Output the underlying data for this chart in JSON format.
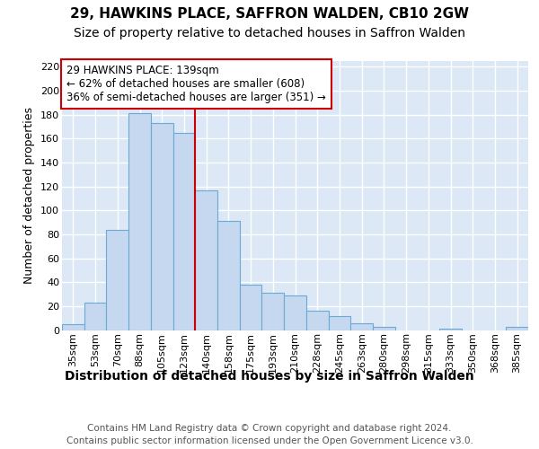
{
  "title": "29, HAWKINS PLACE, SAFFRON WALDEN, CB10 2GW",
  "subtitle": "Size of property relative to detached houses in Saffron Walden",
  "xlabel": "Distribution of detached houses by size in Saffron Walden",
  "ylabel": "Number of detached properties",
  "categories": [
    "35sqm",
    "53sqm",
    "70sqm",
    "88sqm",
    "105sqm",
    "123sqm",
    "140sqm",
    "158sqm",
    "175sqm",
    "193sqm",
    "210sqm",
    "228sqm",
    "245sqm",
    "263sqm",
    "280sqm",
    "298sqm",
    "315sqm",
    "333sqm",
    "350sqm",
    "368sqm",
    "385sqm"
  ],
  "values": [
    5,
    23,
    84,
    181,
    173,
    165,
    117,
    91,
    38,
    31,
    29,
    16,
    12,
    6,
    3,
    0,
    0,
    1,
    0,
    0,
    3
  ],
  "bar_color": "#c5d8ef",
  "bar_edge_color": "#6aaad4",
  "background_color": "#dce8f5",
  "grid_color": "#ffffff",
  "vline_color": "#cc0000",
  "vline_x_index": 6,
  "annotation_text": "29 HAWKINS PLACE: 139sqm\n← 62% of detached houses are smaller (608)\n36% of semi-detached houses are larger (351) →",
  "ylim": [
    0,
    225
  ],
  "yticks": [
    0,
    20,
    40,
    60,
    80,
    100,
    120,
    140,
    160,
    180,
    200,
    220
  ],
  "footer_line1": "Contains HM Land Registry data © Crown copyright and database right 2024.",
  "footer_line2": "Contains public sector information licensed under the Open Government Licence v3.0.",
  "title_fontsize": 11,
  "subtitle_fontsize": 10,
  "xlabel_fontsize": 10,
  "ylabel_fontsize": 9,
  "tick_fontsize": 8,
  "footer_fontsize": 7.5,
  "ann_fontsize": 8.5
}
